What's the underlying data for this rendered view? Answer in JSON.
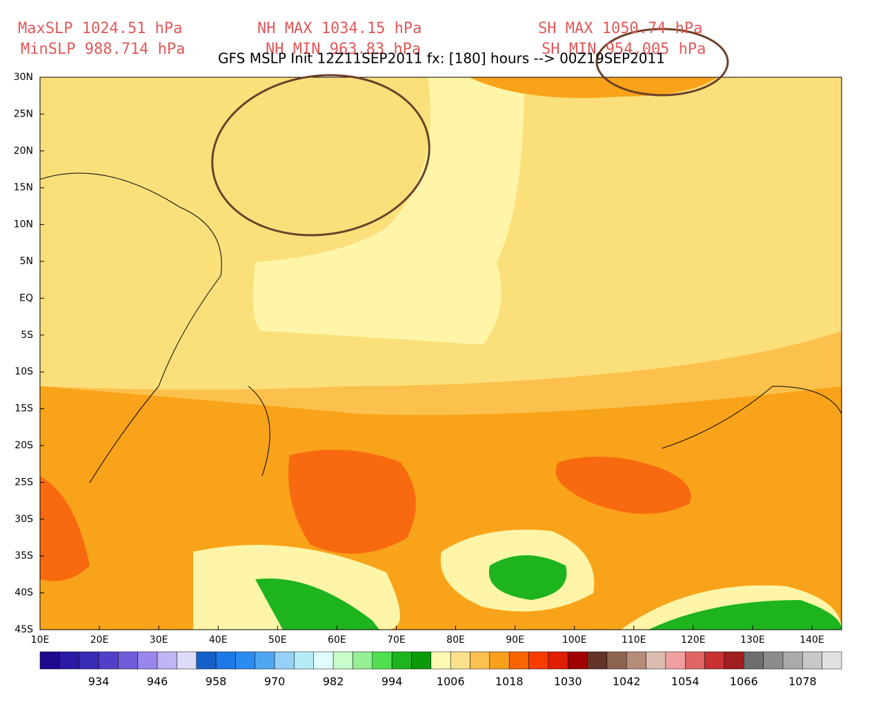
{
  "header": {
    "stats": [
      [
        "MaxSLP 1024.51 hPa",
        "NH MAX 1034.15 hPa",
        "SH MAX 1050.74 hPa"
      ],
      [
        "MinSLP 988.714 hPa",
        "NH MIN 963.83 hPa",
        "SH MIN 954.005 hPa"
      ]
    ],
    "title": "GFS MSLP Init 12Z11SEP2011 fx: [180] hours --> 00Z19SEP2011"
  },
  "map": {
    "lat_labels": [
      "30N",
      "25N",
      "20N",
      "15N",
      "10N",
      "5N",
      "EQ",
      "5S",
      "10S",
      "15S",
      "20S",
      "25S",
      "30S",
      "35S",
      "40S",
      "45S"
    ],
    "lon_labels": [
      "10E",
      "20E",
      "30E",
      "40E",
      "50E",
      "60E",
      "70E",
      "80E",
      "90E",
      "100E",
      "110E",
      "120E",
      "130E",
      "140E"
    ]
  },
  "colorbar": {
    "colors": [
      "#1e0a8c",
      "#2a1aa6",
      "#3a2cb4",
      "#5040c8",
      "#6e5cd8",
      "#9a86ea",
      "#c0b4f4",
      "#dcdcf8",
      "#1460c8",
      "#1e78e6",
      "#2a8cf0",
      "#50a6f0",
      "#96d0f8",
      "#b4ecf8",
      "#e0fcfc",
      "#c8fcc8",
      "#96f096",
      "#50e050",
      "#1eb41e",
      "#0a9a0a",
      "#fefab4",
      "#fae08c",
      "#fac050",
      "#f8a01e",
      "#f86400",
      "#f83c00",
      "#e01e00",
      "#a00000",
      "#643428",
      "#8c6450",
      "#b48c78",
      "#dcbcb0",
      "#f0a0a0",
      "#e06464",
      "#c83232",
      "#a01e1e",
      "#6e6e6e",
      "#8c8c8c",
      "#aaaaaa",
      "#c8c8c8",
      "#e1e1e1"
    ],
    "labels": [
      "934",
      "946",
      "958",
      "970",
      "982",
      "994",
      "1006",
      "1018",
      "1030",
      "1042",
      "1054",
      "1066",
      "1078"
    ]
  }
}
